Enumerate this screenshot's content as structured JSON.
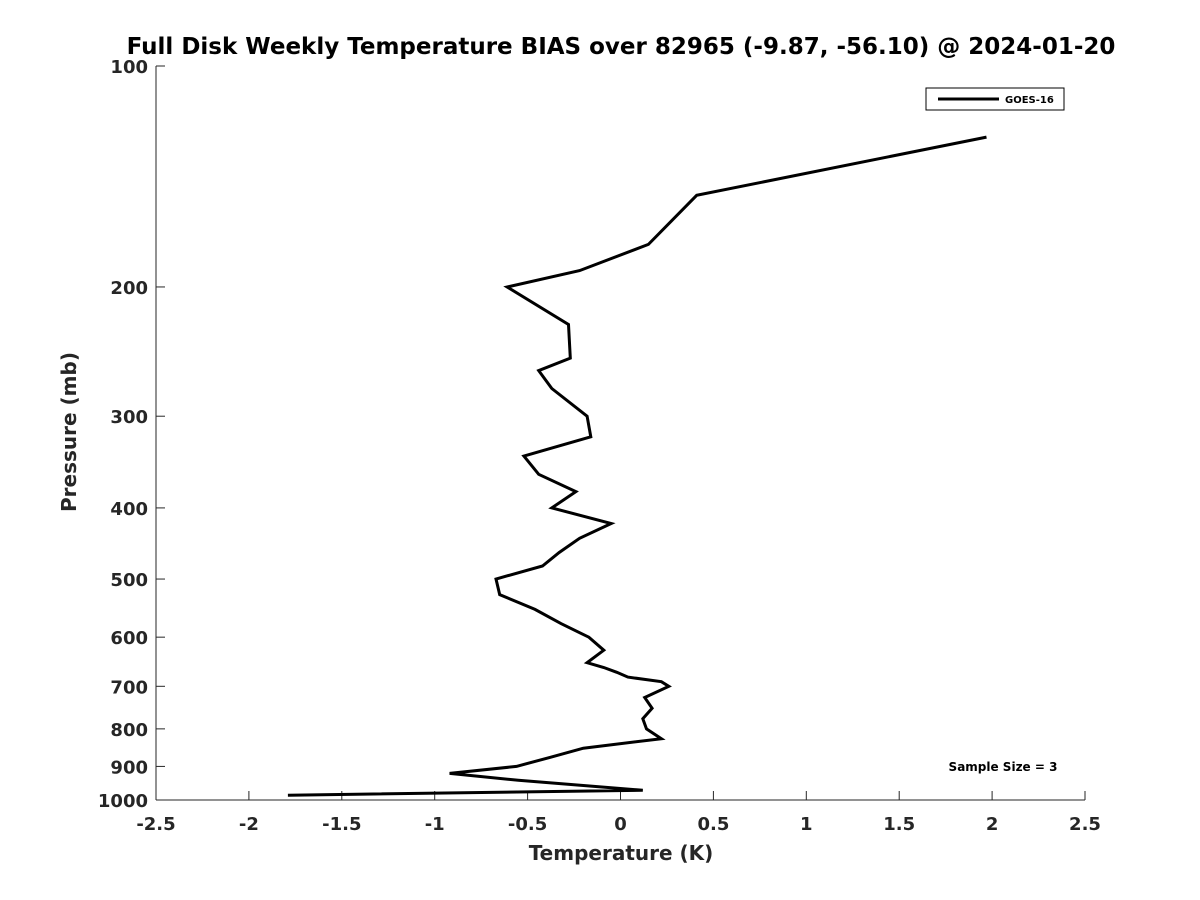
{
  "chart_data": {
    "type": "line",
    "title": "Full Disk Weekly Temperature BIAS over 82965 (-9.87, -56.10) @ 2024-01-20",
    "xlabel": "Temperature (K)",
    "ylabel": "Pressure (mb)",
    "xlim": [
      -2.5,
      2.5
    ],
    "ylim": [
      100,
      1000
    ],
    "y_scale": "log",
    "y_reversed": true,
    "grid": false,
    "legend_position": "top-right",
    "x_ticks": [
      "-2.5",
      "-2",
      "-1.5",
      "-1",
      "-0.5",
      "0",
      "0.5",
      "1",
      "1.5",
      "2",
      "2.5"
    ],
    "y_ticks": [
      "100",
      "200",
      "300",
      "400",
      "500",
      "600",
      "700",
      "800",
      "900",
      "1000"
    ],
    "annotation": "Sample Size = 3",
    "series": [
      {
        "name": "GOES-16",
        "color": "#000000",
        "points": [
          {
            "x": 1.97,
            "p": 125
          },
          {
            "x": 0.41,
            "p": 150
          },
          {
            "x": 0.15,
            "p": 175
          },
          {
            "x": -0.22,
            "p": 190
          },
          {
            "x": -0.61,
            "p": 200
          },
          {
            "x": -0.28,
            "p": 225
          },
          {
            "x": -0.27,
            "p": 250
          },
          {
            "x": -0.44,
            "p": 260
          },
          {
            "x": -0.37,
            "p": 275
          },
          {
            "x": -0.18,
            "p": 300
          },
          {
            "x": -0.16,
            "p": 320
          },
          {
            "x": -0.52,
            "p": 340
          },
          {
            "x": -0.44,
            "p": 360
          },
          {
            "x": -0.24,
            "p": 380
          },
          {
            "x": -0.37,
            "p": 400
          },
          {
            "x": -0.05,
            "p": 420
          },
          {
            "x": -0.22,
            "p": 440
          },
          {
            "x": -0.33,
            "p": 460
          },
          {
            "x": -0.42,
            "p": 480
          },
          {
            "x": -0.67,
            "p": 500
          },
          {
            "x": -0.65,
            "p": 525
          },
          {
            "x": -0.46,
            "p": 550
          },
          {
            "x": -0.32,
            "p": 575
          },
          {
            "x": -0.17,
            "p": 600
          },
          {
            "x": -0.09,
            "p": 625
          },
          {
            "x": -0.18,
            "p": 650
          },
          {
            "x": -0.09,
            "p": 660
          },
          {
            "x": -0.02,
            "p": 670
          },
          {
            "x": 0.04,
            "p": 680
          },
          {
            "x": 0.22,
            "p": 690
          },
          {
            "x": 0.26,
            "p": 700
          },
          {
            "x": 0.13,
            "p": 725
          },
          {
            "x": 0.17,
            "p": 750
          },
          {
            "x": 0.12,
            "p": 775
          },
          {
            "x": 0.14,
            "p": 800
          },
          {
            "x": 0.22,
            "p": 825
          },
          {
            "x": -0.2,
            "p": 850
          },
          {
            "x": -0.38,
            "p": 875
          },
          {
            "x": -0.56,
            "p": 900
          },
          {
            "x": -0.92,
            "p": 920
          },
          {
            "x": -0.55,
            "p": 940
          },
          {
            "x": 0.12,
            "p": 970
          },
          {
            "x": -1.79,
            "p": 985
          }
        ]
      }
    ]
  }
}
